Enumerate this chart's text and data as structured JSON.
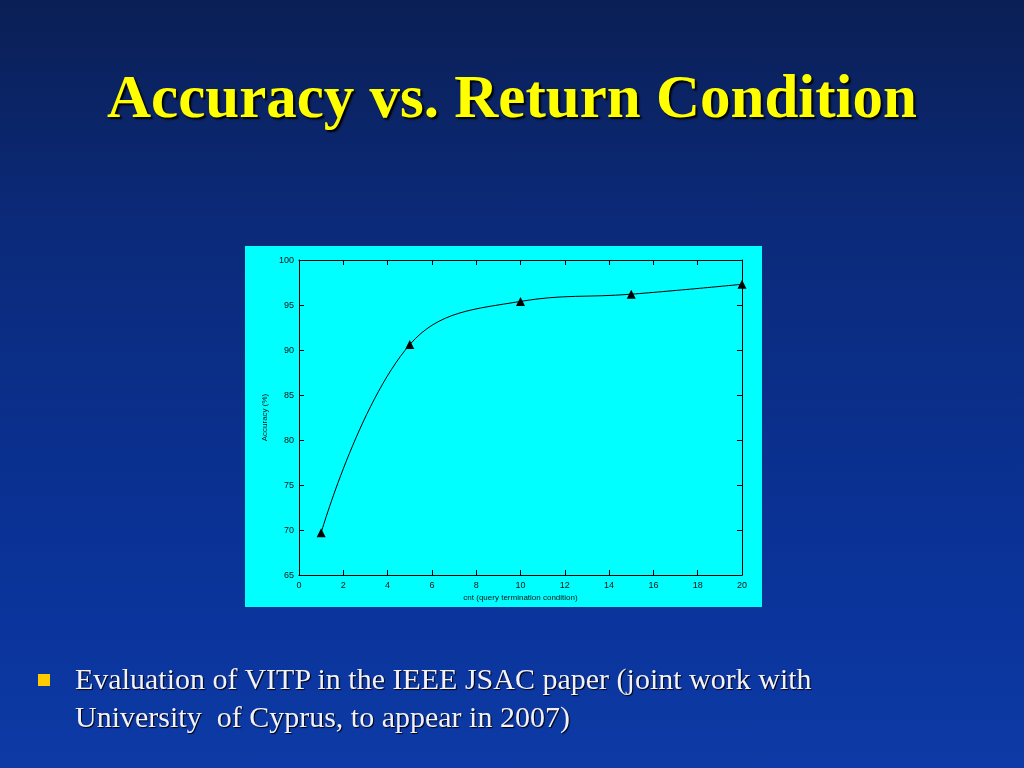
{
  "chart_data": {
    "type": "line",
    "title": "Accuracy vs. Return Condition",
    "xlabel": "cnt (query termination condition)",
    "ylabel": "Accuracy (%)",
    "x": [
      1,
      5,
      10,
      15,
      20
    ],
    "values": [
      69.7,
      90.6,
      95.4,
      96.2,
      97.3
    ],
    "color": "#000000",
    "xlim": [
      0,
      20
    ],
    "xticks": [
      0,
      2,
      4,
      6,
      8,
      10,
      12,
      14,
      16,
      18,
      20
    ],
    "ylim": [
      65,
      100
    ],
    "yticks": [
      65,
      70,
      75,
      80,
      85,
      90,
      95,
      100
    ],
    "marker": "triangle",
    "line_style": "solid",
    "annotations": [
      "Evaluation of VITP in the IEEE JSAC paper (joint work with University  of Cyprus, to appear in 2007)"
    ]
  }
}
